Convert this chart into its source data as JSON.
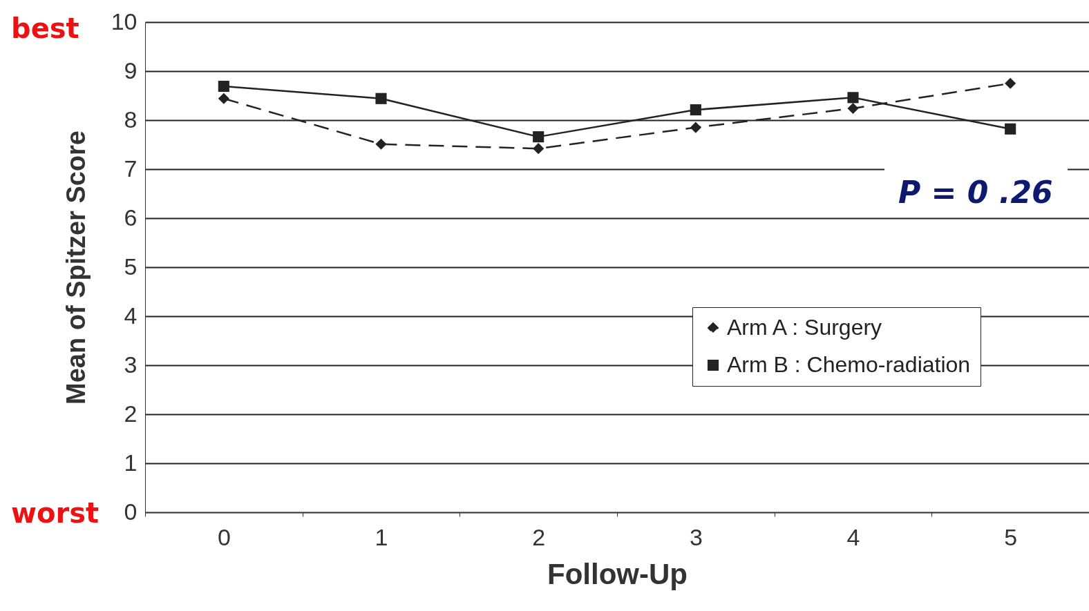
{
  "chart_data": {
    "type": "line",
    "xlabel": "Follow-Up",
    "ylabel": "Mean of Spitzer Score",
    "categories": [
      "0",
      "1",
      "2",
      "3",
      "4",
      "5"
    ],
    "ylim": [
      0,
      10
    ],
    "yticks": [
      0,
      1,
      2,
      3,
      4,
      5,
      6,
      7,
      8,
      9,
      10
    ],
    "grid": "y",
    "legend": "bottom right",
    "series": [
      {
        "name": "Arm A : Surgery",
        "color": "#222222",
        "line_style": "dashed",
        "marker": "diamond",
        "values": [
          8.44,
          7.51,
          7.42,
          7.85,
          8.24,
          8.75
        ]
      },
      {
        "name": "Arm B : Chemo-radiation",
        "color": "#222222",
        "line_style": "solid",
        "marker": "square",
        "values": [
          8.69,
          8.44,
          7.66,
          8.21,
          8.46,
          7.82
        ]
      }
    ],
    "annotations": [
      "best",
      "worst",
      "P = 0 .26"
    ]
  }
}
